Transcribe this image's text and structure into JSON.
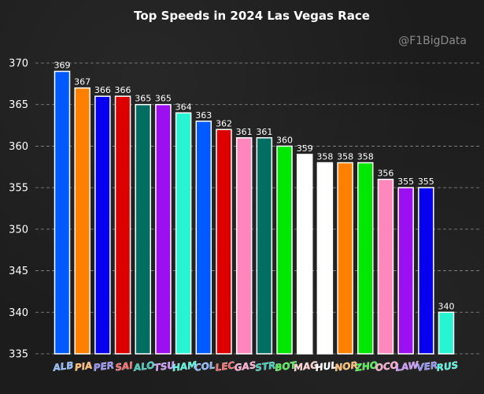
{
  "chart_data": {
    "type": "bar",
    "title": "Top Speeds in 2024 Las Vegas Race",
    "watermark": "@F1BigData",
    "xlabel": "",
    "ylabel": "",
    "ylim": [
      335,
      370
    ],
    "yticks": [
      335,
      340,
      345,
      350,
      355,
      360,
      365,
      370
    ],
    "grid": true,
    "categories": [
      "ALB",
      "PIA",
      "PER",
      "SAI",
      "ALO",
      "TSU",
      "HAM",
      "COL",
      "LEC",
      "GAS",
      "STR",
      "BOT",
      "MAG",
      "HUL",
      "NOR",
      "ZHO",
      "OCO",
      "LAW",
      "VER",
      "RUS"
    ],
    "values": [
      369,
      367,
      366,
      366,
      365,
      365,
      364,
      363,
      362,
      361,
      361,
      360,
      359,
      358,
      358,
      358,
      356,
      355,
      355,
      340
    ],
    "colors": [
      "#005AFF",
      "#FF8000",
      "#0600EF",
      "#DC0000",
      "#006F62",
      "#9B0FF0",
      "#27F4D2",
      "#005AFF",
      "#DC0000",
      "#FF87BC",
      "#006F62",
      "#00E701",
      "#FFFFFF",
      "#FFFFFF",
      "#FF8000",
      "#00E701",
      "#FF87BC",
      "#9B0FF0",
      "#0600EF",
      "#27F4D2"
    ],
    "label_colors": [
      "#7FB2FF",
      "#FFB15A",
      "#8A86FF",
      "#FF5A5A",
      "#2BC8B4",
      "#C98BFF",
      "#3CF6DC",
      "#7FB2FF",
      "#FF5A5A",
      "#FF9ECB",
      "#2BC8B4",
      "#3BF03B",
      "#FFC9C9",
      "#FFFFFF",
      "#FFB15A",
      "#3BF03B",
      "#FF9ECB",
      "#C98BFF",
      "#8A86FF",
      "#3CF6DC"
    ]
  }
}
